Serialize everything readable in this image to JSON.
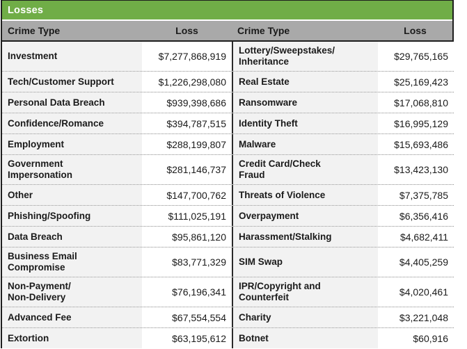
{
  "title": "Losses",
  "colors": {
    "title_bar_green": "#70AD47",
    "header_row_gray": "#A9A9A9",
    "crime_cell_bg": "#F2F2F2",
    "loss_cell_bg": "#FFFFFF",
    "border_dark": "#1E1E1E",
    "row_separator": "#8A8A8A"
  },
  "table": {
    "headers": {
      "crime_type_1": "Crime Type",
      "loss_1": "Loss",
      "crime_type_2": "Crime Type",
      "loss_2": "Loss"
    },
    "rows": [
      {
        "crime1": "Investment",
        "loss1": "$7,277,868,919",
        "crime2": "Lottery/Sweepstakes/\nInheritance",
        "loss2": "$29,765,165"
      },
      {
        "crime1": "Tech/Customer Support",
        "loss1": "$1,226,298,080",
        "crime2": "Real Estate",
        "loss2": "$25,169,423"
      },
      {
        "crime1": "Personal Data Breach",
        "loss1": "$939,398,686",
        "crime2": "Ransomware",
        "loss2": "$17,068,810"
      },
      {
        "crime1": "Confidence/Romance",
        "loss1": "$394,787,515",
        "crime2": "Identity Theft",
        "loss2": "$16,995,129"
      },
      {
        "crime1": "Employment",
        "loss1": "$288,199,807",
        "crime2": "Malware",
        "loss2": "$15,693,486"
      },
      {
        "crime1": "Government\nImpersonation",
        "loss1": "$281,146,737",
        "crime2": "Credit Card/Check\nFraud",
        "loss2": "$13,423,130"
      },
      {
        "crime1": "Other",
        "loss1": "$147,700,762",
        "crime2": "Threats of Violence",
        "loss2": "$7,375,785"
      },
      {
        "crime1": "Phishing/Spoofing",
        "loss1": "$111,025,191",
        "crime2": "Overpayment",
        "loss2": "$6,356,416"
      },
      {
        "crime1": "Data Breach",
        "loss1": "$95,861,120",
        "crime2": "Harassment/Stalking",
        "loss2": "$4,682,411"
      },
      {
        "crime1": "Business Email\nCompromise",
        "loss1": "$83,771,329",
        "crime2": "SIM Swap",
        "loss2": "$4,405,259"
      },
      {
        "crime1": "Non-Payment/\nNon-Delivery",
        "loss1": "$76,196,341",
        "crime2": "IPR/Copyright and\nCounterfeit",
        "loss2": "$4,020,461"
      },
      {
        "crime1": "Advanced Fee",
        "loss1": "$67,554,554",
        "crime2": "Charity",
        "loss2": "$3,221,048"
      },
      {
        "crime1": "Extortion",
        "loss1": "$63,195,612",
        "crime2": "Botnet",
        "loss2": "$60,916"
      }
    ]
  }
}
